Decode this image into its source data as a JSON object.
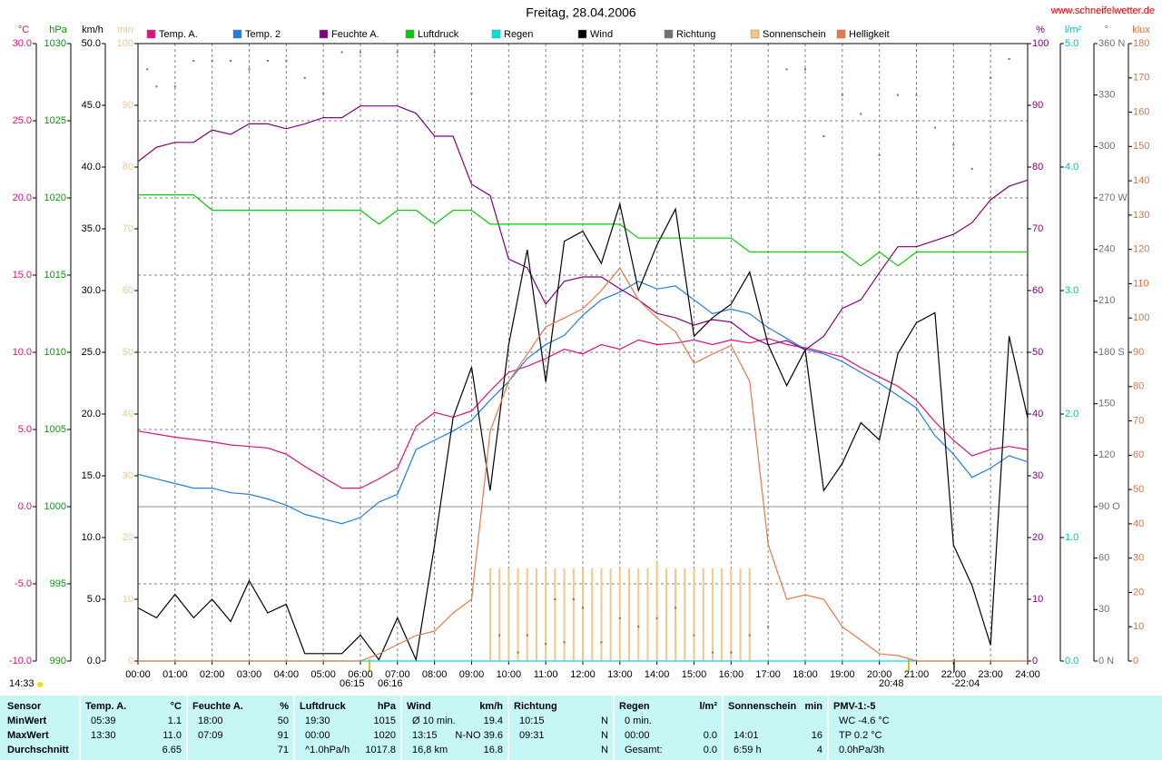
{
  "chart_data": {
    "type": "line",
    "title": "Freitag, 28.04.2006",
    "website": "www.schneifelwetter.de",
    "annotations": [
      "14:33",
      "06:15",
      "06:16",
      "20:48",
      "-22:04"
    ],
    "grid": true,
    "xlim": [
      0,
      24
    ],
    "xticks": [
      {
        "value": 0,
        "label": "00:00"
      },
      {
        "value": 1,
        "label": "01:00"
      },
      {
        "value": 2,
        "label": "02:00"
      },
      {
        "value": 3,
        "label": "03:00"
      },
      {
        "value": 4,
        "label": "04:00"
      },
      {
        "value": 5,
        "label": "05:00"
      },
      {
        "value": 6,
        "label": "06:00"
      },
      {
        "value": 7,
        "label": "07:00"
      },
      {
        "value": 8,
        "label": "08:00"
      },
      {
        "value": 9,
        "label": "09:00"
      },
      {
        "value": 10,
        "label": "10:00"
      },
      {
        "value": 11,
        "label": "11:00"
      },
      {
        "value": 12,
        "label": "12:00"
      },
      {
        "value": 13,
        "label": "13:00"
      },
      {
        "value": 14,
        "label": "14:00"
      },
      {
        "value": 15,
        "label": "15:00"
      },
      {
        "value": 16,
        "label": "16:00"
      },
      {
        "value": 17,
        "label": "17:00"
      },
      {
        "value": 18,
        "label": "18:00"
      },
      {
        "value": 19,
        "label": "19:00"
      },
      {
        "value": 20,
        "label": "20:00"
      },
      {
        "value": 21,
        "label": "21:00"
      },
      {
        "value": 22,
        "label": "22:00"
      },
      {
        "value": 23,
        "label": "23:00"
      },
      {
        "value": 24,
        "label": "24:00"
      }
    ],
    "axes": [
      {
        "title": "°C",
        "side": "left",
        "color": "#e0107f",
        "lim": [
          -10,
          30
        ],
        "ticks": [
          {
            "value": -10,
            "label": "-10.0"
          },
          {
            "value": -5,
            "label": "-5.0"
          },
          {
            "value": 0,
            "label": "0.0"
          },
          {
            "value": 5,
            "label": "5.0"
          },
          {
            "value": 10,
            "label": "10.0"
          },
          {
            "value": 15,
            "label": "15.0"
          },
          {
            "value": 20,
            "label": "20.0"
          },
          {
            "value": 25,
            "label": "25.0"
          },
          {
            "value": 30,
            "label": "30.0"
          }
        ]
      },
      {
        "title": "hPa",
        "side": "left",
        "color": "#00a000",
        "lim": [
          990,
          1030
        ],
        "ticks": [
          990,
          995,
          1000,
          1005,
          1010,
          1015,
          1020,
          1025,
          1030
        ]
      },
      {
        "title": "km/h",
        "side": "left",
        "color": "#000000",
        "lim": [
          0,
          50
        ],
        "ticks": [
          {
            "value": 0,
            "label": "0.0"
          },
          {
            "value": 5,
            "label": "5.0"
          },
          {
            "value": 10,
            "label": "10.0"
          },
          {
            "value": 15,
            "label": "15.0"
          },
          {
            "value": 20,
            "label": "20.0"
          },
          {
            "value": 25,
            "label": "25.0"
          },
          {
            "value": 30,
            "label": "30.0"
          },
          {
            "value": 35,
            "label": "35.0"
          },
          {
            "value": 40,
            "label": "40.0"
          },
          {
            "value": 45,
            "label": "45.0"
          },
          {
            "value": 50,
            "label": "50.0"
          }
        ]
      },
      {
        "title": "min",
        "side": "left",
        "color": "#f0c888",
        "lim": [
          0,
          100
        ],
        "ticks": [
          0,
          10,
          20,
          30,
          40,
          50,
          60,
          70,
          80,
          90,
          100
        ]
      },
      {
        "title": "%",
        "side": "right",
        "color": "#800080",
        "lim": [
          0,
          100
        ],
        "ticks": [
          0,
          10,
          20,
          30,
          40,
          50,
          60,
          70,
          80,
          90,
          100
        ]
      },
      {
        "title": "l/m²",
        "side": "right",
        "color": "#00c0c0",
        "lim": [
          0,
          5
        ],
        "ticks": [
          {
            "value": 0,
            "label": "0.0"
          },
          {
            "value": 1,
            "label": "1.0"
          },
          {
            "value": 2,
            "label": "2.0"
          },
          {
            "value": 3,
            "label": "3.0"
          },
          {
            "value": 4,
            "label": "4.0"
          },
          {
            "value": 5,
            "label": "5.0"
          }
        ]
      },
      {
        "title": "°",
        "side": "right",
        "color": "#707070",
        "lim": [
          0,
          360
        ],
        "ticks": [
          {
            "value": 0,
            "label": "0 N"
          },
          30,
          60,
          {
            "value": 90,
            "label": "90 O"
          },
          120,
          150,
          {
            "value": 180,
            "label": "180 S"
          },
          210,
          240,
          {
            "value": 270,
            "label": "270 W"
          },
          300,
          330,
          {
            "value": 360,
            "label": "360 N"
          }
        ]
      },
      {
        "title": "klux",
        "side": "right",
        "color": "#e07040",
        "lim": [
          0,
          180
        ],
        "ticks": [
          0,
          10,
          20,
          30,
          40,
          50,
          60,
          70,
          80,
          90,
          100,
          110,
          120,
          130,
          140,
          150,
          160,
          170,
          180
        ]
      }
    ],
    "x": [
      0,
      0.5,
      1,
      1.5,
      2,
      2.5,
      3,
      3.5,
      4,
      4.5,
      5,
      5.5,
      6,
      6.5,
      7,
      7.5,
      8,
      8.5,
      9,
      9.5,
      10,
      10.5,
      11,
      11.5,
      12,
      12.5,
      13,
      13.5,
      14,
      14.5,
      15,
      15.5,
      16,
      16.5,
      17,
      17.5,
      18,
      18.5,
      19,
      19.5,
      20,
      20.5,
      21,
      21.5,
      22,
      22.5,
      23,
      23.5,
      24
    ],
    "series": [
      {
        "name": "Temp. A.",
        "color": "#e0107f",
        "axis": "°C",
        "kind": "line",
        "values": [
          4.9,
          4.7,
          4.5,
          4.35,
          4.2,
          4.0,
          3.9,
          3.8,
          3.4,
          2.6,
          1.9,
          1.2,
          1.2,
          1.8,
          2.5,
          5.2,
          6.1,
          5.8,
          6.2,
          7.5,
          8.7,
          9.1,
          9.6,
          10.2,
          9.9,
          10.5,
          10.2,
          10.8,
          10.5,
          10.6,
          10.8,
          10.5,
          10.8,
          10.6,
          10.9,
          10.5,
          10.3,
          10.0,
          9.7,
          9.0,
          8.4,
          7.8,
          6.9,
          5.5,
          4.3,
          3.3,
          3.7,
          3.9,
          3.7
        ]
      },
      {
        "name": "Temp. 2",
        "color": "#1f7fe0",
        "axis": "°C",
        "kind": "line",
        "values": [
          2.1,
          1.8,
          1.5,
          1.2,
          1.2,
          0.9,
          0.8,
          0.5,
          0.1,
          -0.5,
          -0.8,
          -1.1,
          -0.7,
          0.3,
          0.8,
          3.7,
          4.3,
          4.9,
          5.6,
          6.9,
          8.1,
          9.6,
          10.5,
          11.1,
          12.4,
          13.4,
          13.9,
          14.6,
          14.1,
          14.3,
          13.4,
          12.5,
          12.8,
          12.5,
          11.6,
          10.9,
          10.2,
          9.9,
          9.4,
          8.7,
          8.0,
          7.2,
          6.4,
          4.6,
          3.4,
          1.9,
          2.5,
          3.3,
          2.9
        ]
      },
      {
        "name": "Feuchte A.",
        "color": "#800080",
        "axis": "%",
        "kind": "line",
        "values": [
          80.9,
          83.2,
          84,
          84,
          86,
          85.3,
          87,
          87,
          86.2,
          87,
          88,
          88,
          89.9,
          89.9,
          89.9,
          88.7,
          85,
          85,
          77.2,
          75.4,
          65.1,
          63.7,
          57.8,
          61.5,
          62.2,
          62.2,
          60.3,
          58.5,
          56.3,
          55.6,
          54.4,
          55.3,
          54.9,
          52.6,
          51.2,
          51.9,
          50.4,
          52.6,
          57.1,
          58.5,
          62.9,
          67.1,
          67.1,
          68.1,
          69.1,
          71,
          74.7,
          76.9,
          77.9
        ]
      },
      {
        "name": "Luftdruck",
        "color": "#00d000",
        "axis": "hPa",
        "kind": "line",
        "values": [
          1020.2,
          1020.2,
          1020.2,
          1020.2,
          1019.2,
          1019.2,
          1019.2,
          1019.2,
          1019.2,
          1019.2,
          1019.2,
          1019.2,
          1019.2,
          1018.3,
          1019.2,
          1019.2,
          1018.3,
          1019.2,
          1019.2,
          1018.3,
          1018.3,
          1018.3,
          1018.3,
          1018.3,
          1018.3,
          1018.3,
          1018.3,
          1017.4,
          1017.4,
          1017.4,
          1017.4,
          1017.4,
          1017.4,
          1016.5,
          1016.5,
          1016.5,
          1016.5,
          1016.5,
          1016.5,
          1015.6,
          1016.5,
          1015.6,
          1016.5,
          1016.5,
          1016.5,
          1016.5,
          1016.5,
          1016.5,
          1016.5
        ]
      },
      {
        "name": "Regen",
        "color": "#00e0e0",
        "axis": "l/m²",
        "kind": "line",
        "x": [
          0,
          24
        ],
        "values": [
          0,
          0
        ]
      },
      {
        "name": "Wind",
        "color": "#000000",
        "axis": "km/h",
        "kind": "line",
        "values": [
          4.3,
          3.5,
          5.4,
          3.5,
          5.0,
          3.2,
          6.5,
          3.9,
          4.6,
          0.6,
          0.6,
          0.6,
          2.1,
          0.1,
          3.5,
          0.1,
          9.4,
          19.7,
          23.8,
          13.8,
          25.6,
          33.3,
          22.6,
          34.0,
          34.8,
          32.2,
          37.0,
          30.0,
          33.7,
          36.6,
          26.3,
          27.8,
          28.9,
          31.5,
          25.6,
          22.3,
          25.2,
          13.8,
          16.0,
          19.3,
          17.9,
          24.9,
          27.4,
          28.2,
          9.4,
          6.1,
          1.3,
          26.3,
          19.7
        ]
      },
      {
        "name": "Richtung",
        "color": "#707070",
        "axis": "°",
        "kind": "dots",
        "x": [
          0.25,
          0.5,
          1,
          1.5,
          2,
          2.5,
          3,
          3.5,
          4,
          4.5,
          5,
          5.5,
          6,
          7,
          8,
          9,
          9.75,
          10.25,
          10.5,
          11,
          11.25,
          11.5,
          11.75,
          12,
          12.5,
          13,
          13.5,
          14,
          14.5,
          15,
          15.5,
          16,
          16.5,
          17,
          17.5,
          18,
          18.5,
          19,
          19.5,
          20,
          20.5,
          21,
          21.5,
          22,
          22.5,
          23,
          23.5
        ],
        "values": [
          345,
          335,
          335,
          350,
          350,
          350,
          345,
          350,
          350,
          340,
          331,
          355,
          355,
          355,
          355,
          331,
          15,
          5,
          15,
          10,
          36,
          11,
          36,
          31,
          11,
          25,
          20,
          25,
          31,
          15,
          5,
          5,
          15,
          20,
          345,
          345,
          306,
          330,
          319,
          295,
          330,
          330,
          311,
          301,
          287,
          340,
          351
        ]
      },
      {
        "name": "Sonnenschein",
        "color": "#f4c880",
        "axis": "min",
        "kind": "bars",
        "x": [
          9.5,
          9.75,
          10,
          10.25,
          10.5,
          10.75,
          11,
          11.25,
          11.5,
          11.75,
          12,
          12.25,
          12.5,
          12.75,
          13,
          13.25,
          13.5,
          13.75,
          14,
          14.25,
          14.5,
          14.75,
          15,
          15.25,
          15.5,
          15.75,
          16,
          16.25,
          16.5
        ],
        "values": [
          15,
          15,
          15,
          15,
          15,
          15,
          15,
          15,
          15,
          15,
          15,
          15,
          15,
          15,
          15,
          15,
          15,
          15,
          16,
          15,
          15,
          15,
          15,
          15,
          15,
          15,
          15,
          15,
          15
        ]
      },
      {
        "name": "Helligkeit",
        "color": "#e8784a",
        "axis": "klux",
        "kind": "line",
        "values": [
          0,
          0,
          0,
          0,
          0,
          0,
          0,
          0,
          0,
          0,
          0,
          0,
          0,
          2.1,
          4.8,
          7.4,
          8.7,
          14,
          18,
          67,
          81.5,
          89.5,
          97.4,
          100,
          102.7,
          108,
          114.6,
          105.3,
          100,
          96,
          86.8,
          89.5,
          92,
          81.5,
          33.9,
          18,
          19.3,
          18,
          10,
          6.1,
          2.1,
          1.6,
          0,
          0,
          0,
          0,
          0,
          0,
          0
        ]
      }
    ]
  },
  "table": {
    "row_labels": [
      "Sensor",
      "MinWert",
      "MaxWert",
      "Durchschnitt"
    ],
    "columns": [
      {
        "header": "Temp. A.",
        "unit": "°C",
        "rows": [
          [
            "05:39",
            "1.1"
          ],
          [
            "13:30",
            "11.0"
          ],
          [
            null,
            "6.65"
          ]
        ]
      },
      {
        "header": "Feuchte A.",
        "unit": "%",
        "rows": [
          [
            "18:00",
            "50"
          ],
          [
            "07:09",
            "91"
          ],
          [
            null,
            "71"
          ]
        ]
      },
      {
        "header": "Luftdruck",
        "unit": "hPa",
        "rows": [
          [
            "19:30",
            "1015"
          ],
          [
            "00:00",
            "1020"
          ],
          [
            "^1.0hPa/h",
            "1017.8"
          ]
        ]
      },
      {
        "header": "Wind",
        "unit": "km/h",
        "rows": [
          [
            "Ø 10 min.",
            "19.4"
          ],
          [
            "13:15",
            "N-NO 39.6"
          ],
          [
            "16,8 km",
            "16.8"
          ]
        ]
      },
      {
        "header": "Richtung",
        "rows": [
          [
            "10:15",
            "N"
          ],
          [
            "09:31",
            "N"
          ],
          [
            null,
            "N"
          ]
        ]
      },
      {
        "header": "Regen",
        "unit": "l/m²",
        "rows": [
          [
            "0 min."
          ],
          [
            "00:00",
            "0.0"
          ],
          [
            "Gesamt:",
            "0.0"
          ]
        ]
      },
      {
        "header": "Sonnenschein",
        "unit": "min",
        "rows": [
          [],
          [
            "14:01",
            "16"
          ],
          [
            "6:59 h",
            "4"
          ]
        ]
      },
      {
        "header": "PMV-1:-5",
        "rows": [
          [
            "WC -4.6 °C"
          ],
          [
            "TP 0.2 °C"
          ],
          [
            "0.0hPa/3h"
          ]
        ]
      }
    ]
  }
}
